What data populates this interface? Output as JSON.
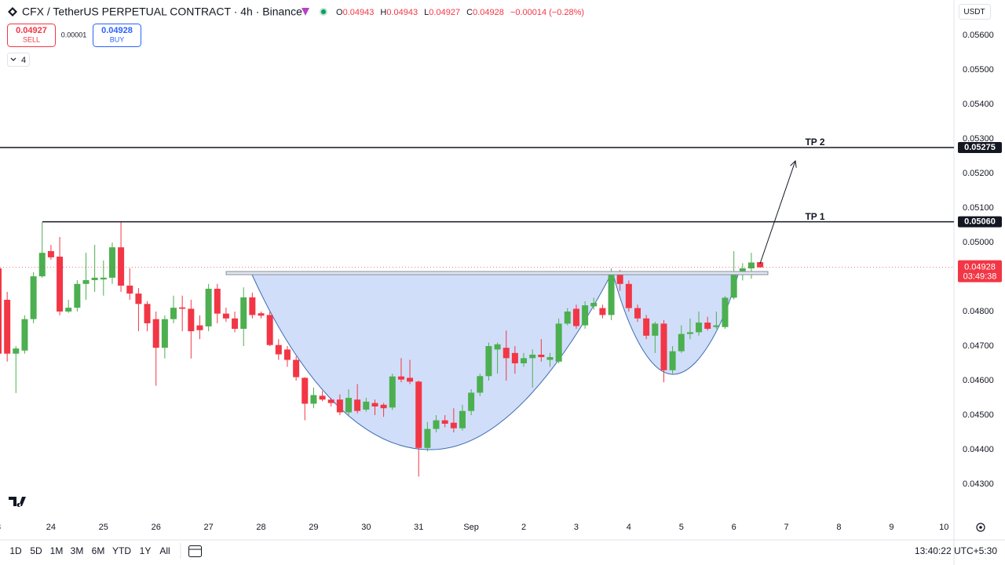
{
  "header": {
    "symbol": "CFX / TetherUS PERPETUAL CONTRACT · 4h · Binance",
    "ohlc": [
      {
        "label": "O",
        "value": "0.04943"
      },
      {
        "label": "H",
        "value": "0.04943"
      },
      {
        "label": "L",
        "value": "0.04927"
      },
      {
        "label": "C",
        "value": "0.04928"
      }
    ],
    "change": "−0.00014 (−0.28%)",
    "sell_price": "0.04927",
    "sell": "SELL",
    "spread": "0.00001",
    "buy_price": "0.04928",
    "buy": "BUY",
    "indicators": "4",
    "currency": "USDT"
  },
  "toolbar": {
    "ranges": [
      "1D",
      "5D",
      "1M",
      "3M",
      "6M",
      "YTD",
      "1Y",
      "All"
    ],
    "clock": "13:40:22 UTC+5:30"
  },
  "chart_data": {
    "type": "candlestick",
    "up_color": "#4caf50",
    "down_color": "#f23645",
    "x": [
      0,
      0.167,
      0.333,
      0.5,
      0.667,
      0.833,
      1,
      1.167,
      1.333,
      1.5,
      1.667,
      1.833,
      2,
      2.167,
      2.333,
      2.5,
      2.667,
      2.833,
      3,
      3.167,
      3.333,
      3.5,
      3.667,
      3.833,
      4,
      4.167,
      4.333,
      4.5,
      4.667,
      4.833,
      5,
      5.167,
      5.333,
      5.5,
      5.667,
      5.833,
      6,
      6.167,
      6.333,
      6.5,
      6.667,
      6.833,
      7,
      7.167,
      7.333,
      7.5,
      7.667,
      7.833,
      8,
      8.167,
      8.333,
      8.5,
      8.667,
      8.833,
      9,
      9.167,
      9.333,
      9.5,
      9.667,
      9.833,
      10,
      10.167,
      10.333,
      10.5,
      10.667,
      10.833,
      11,
      11.167,
      11.333,
      11.5,
      11.667,
      11.833,
      12,
      12.167,
      12.333,
      12.5,
      12.667,
      12.833,
      13,
      13.167,
      13.333,
      13.5,
      13.667,
      13.833,
      14,
      14.167,
      14.333,
      14.5
    ],
    "open": [
      0.04925,
      0.04834,
      0.04678,
      0.04687,
      0.04778,
      0.04902,
      0.04975,
      0.04959,
      0.048,
      0.04811,
      0.0488,
      0.04891,
      0.04893,
      0.04898,
      0.04986,
      0.04875,
      0.04852,
      0.04822,
      0.04778,
      0.04695,
      0.04778,
      0.04812,
      0.04808,
      0.0476,
      0.04757,
      0.04866,
      0.04794,
      0.0478,
      0.0475,
      0.04841,
      0.04795,
      0.0479,
      0.04703,
      0.0469,
      0.0466,
      0.04608,
      0.04533,
      0.04556,
      0.04545,
      0.04545,
      0.04508,
      0.04545,
      0.04516,
      0.04535,
      0.0453,
      0.04522,
      0.04612,
      0.04608,
      0.04597,
      0.04405,
      0.0446,
      0.04485,
      0.04478,
      0.04462,
      0.04512,
      0.04565,
      0.04613,
      0.0469,
      0.04695,
      0.0468,
      0.0465,
      0.04665,
      0.04675,
      0.0466,
      0.04655,
      0.04765,
      0.04808,
      0.0476,
      0.04815,
      0.0481,
      0.0479,
      0.04915,
      0.0488,
      0.0481,
      0.0478,
      0.0473,
      0.04765,
      0.0463,
      0.04685,
      0.04735,
      0.0474,
      0.04768,
      0.04755,
      0.04755,
      0.0484,
      0.04908,
      0.04925,
      0.04943
    ],
    "high": [
      0.04925,
      0.04857,
      0.047,
      0.04789,
      0.04914,
      0.05059,
      0.04993,
      0.05016,
      0.04834,
      0.04891,
      0.0497,
      0.04993,
      0.04948,
      0.05,
      0.05059,
      0.04925,
      0.04868,
      0.0483,
      0.048,
      0.04789,
      0.04846,
      0.04846,
      0.04834,
      0.04789,
      0.0488,
      0.0488,
      0.04811,
      0.048,
      0.0487,
      0.04855,
      0.048,
      0.048,
      0.0472,
      0.047,
      0.0467,
      0.0461,
      0.0458,
      0.0457,
      0.0455,
      0.0456,
      0.04575,
      0.0459,
      0.0455,
      0.04545,
      0.04535,
      0.0462,
      0.04665,
      0.0466,
      0.046,
      0.0448,
      0.045,
      0.045,
      0.0452,
      0.0453,
      0.04575,
      0.0462,
      0.0471,
      0.0471,
      0.04745,
      0.047,
      0.0468,
      0.0469,
      0.0472,
      0.0468,
      0.0478,
      0.0481,
      0.0482,
      0.0483,
      0.0484,
      0.0482,
      0.04925,
      0.0492,
      0.0489,
      0.0482,
      0.0479,
      0.0477,
      0.04775,
      0.047,
      0.0476,
      0.0478,
      0.048,
      0.04785,
      0.048,
      0.04845,
      0.04975,
      0.0494,
      0.0497,
      0.04943
    ],
    "low": [
      0.0466,
      0.04655,
      0.04564,
      0.04678,
      0.04766,
      0.04898,
      0.0495,
      0.04789,
      0.04796,
      0.048,
      0.04834,
      0.04857,
      0.04846,
      0.0488,
      0.04857,
      0.04834,
      0.04743,
      0.04743,
      0.04585,
      0.04664,
      0.04766,
      0.04743,
      0.04664,
      0.0472,
      0.04743,
      0.04766,
      0.0477,
      0.0474,
      0.047,
      0.0478,
      0.0478,
      0.047,
      0.0466,
      0.0464,
      0.046,
      0.04485,
      0.0452,
      0.0454,
      0.04525,
      0.045,
      0.045,
      0.04505,
      0.0451,
      0.045,
      0.04495,
      0.04515,
      0.04595,
      0.0459,
      0.04322,
      0.04395,
      0.0445,
      0.04465,
      0.0445,
      0.04455,
      0.045,
      0.04555,
      0.046,
      0.0462,
      0.046,
      0.0462,
      0.0464,
      0.0458,
      0.04655,
      0.0464,
      0.0465,
      0.0476,
      0.0475,
      0.0475,
      0.04805,
      0.0478,
      0.04775,
      0.0486,
      0.048,
      0.0477,
      0.0472,
      0.0468,
      0.04595,
      0.0462,
      0.0468,
      0.0472,
      0.0473,
      0.04745,
      0.0475,
      0.0475,
      0.04835,
      0.0489,
      0.04895,
      0.04927
    ],
    "close": [
      0.04678,
      0.04678,
      0.04693,
      0.04778,
      0.04902,
      0.0497,
      0.04957,
      0.048,
      0.04811,
      0.0488,
      0.04891,
      0.04898,
      0.04898,
      0.04986,
      0.04875,
      0.04852,
      0.04822,
      0.04766,
      0.04695,
      0.04778,
      0.04811,
      0.04808,
      0.04743,
      0.04746,
      0.04866,
      0.04794,
      0.0478,
      0.0475,
      0.04841,
      0.0479,
      0.04788,
      0.04703,
      0.04676,
      0.0466,
      0.0461,
      0.04533,
      0.04558,
      0.04545,
      0.04535,
      0.04508,
      0.0455,
      0.04512,
      0.04539,
      0.04525,
      0.0452,
      0.04612,
      0.04603,
      0.04597,
      0.04405,
      0.0446,
      0.04485,
      0.04475,
      0.04462,
      0.04512,
      0.04565,
      0.04613,
      0.047,
      0.04705,
      0.04665,
      0.0465,
      0.04665,
      0.04675,
      0.04668,
      0.04668,
      0.04765,
      0.048,
      0.04758,
      0.04818,
      0.04825,
      0.0479,
      0.04915,
      0.0488,
      0.0481,
      0.0478,
      0.0473,
      0.04765,
      0.0463,
      0.04685,
      0.04735,
      0.0474,
      0.04768,
      0.0475,
      0.0476,
      0.0484,
      0.04908,
      0.04925,
      0.04942,
      0.04928
    ],
    "xlim": [
      0.03,
      18.19
    ],
    "xticks": [
      {
        "value": 0,
        "label": "3"
      },
      {
        "value": 1,
        "label": "24"
      },
      {
        "value": 2,
        "label": "25"
      },
      {
        "value": 3,
        "label": "26"
      },
      {
        "value": 4,
        "label": "27"
      },
      {
        "value": 5,
        "label": "28"
      },
      {
        "value": 6,
        "label": "29"
      },
      {
        "value": 7,
        "label": "30"
      },
      {
        "value": 8,
        "label": "31"
      },
      {
        "value": 9,
        "label": "Sep"
      },
      {
        "value": 10,
        "label": "2"
      },
      {
        "value": 11,
        "label": "3"
      },
      {
        "value": 12,
        "label": "4"
      },
      {
        "value": 13,
        "label": "5"
      },
      {
        "value": 14,
        "label": "6"
      },
      {
        "value": 15,
        "label": "7"
      },
      {
        "value": 16,
        "label": "8"
      },
      {
        "value": 17,
        "label": "9"
      },
      {
        "value": 18,
        "label": "10"
      }
    ],
    "ylim": [
      0.042,
      0.057
    ],
    "yticks": [
      {
        "value": 0.056,
        "label": "0.05600"
      },
      {
        "value": 0.055,
        "label": "0.05500"
      },
      {
        "value": 0.054,
        "label": "0.05400"
      },
      {
        "value": 0.053,
        "label": "0.05300"
      },
      {
        "value": 0.052,
        "label": "0.05200"
      },
      {
        "value": 0.051,
        "label": "0.05100"
      },
      {
        "value": 0.05,
        "label": "0.05000"
      },
      {
        "value": 0.049,
        "label": "0.04900"
      },
      {
        "value": 0.048,
        "label": "0.04800"
      },
      {
        "value": 0.047,
        "label": "0.04700"
      },
      {
        "value": 0.046,
        "label": "0.04600"
      },
      {
        "value": 0.045,
        "label": "0.04500"
      },
      {
        "value": 0.044,
        "label": "0.04400"
      },
      {
        "value": 0.043,
        "label": "0.04300"
      }
    ],
    "grid": false,
    "levels": [
      {
        "label": "TP 2",
        "value": 0.05275
      },
      {
        "label": "TP 1",
        "value": 0.0506,
        "value_label": "0.05060"
      }
    ],
    "last_price": 0.04928,
    "countdown": "03:49:38"
  }
}
